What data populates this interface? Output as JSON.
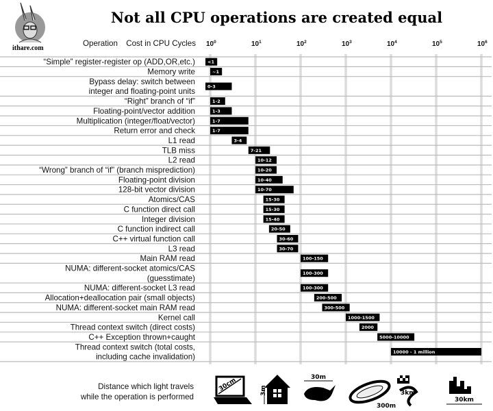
{
  "header": {
    "site": "ithare.com",
    "logo": "rabbit-with-glasses-logo"
  },
  "chart_data": {
    "type": "bar",
    "orientation": "horizontal",
    "scale": "log",
    "title": "Not all CPU operations are created equal",
    "column_header_left": "Operation",
    "xlabel": "Cost in CPU Cycles",
    "xlim": [
      1,
      1000000
    ],
    "xticks": [
      {
        "base": "10",
        "exp": "0"
      },
      {
        "base": "10",
        "exp": "1"
      },
      {
        "base": "10",
        "exp": "2"
      },
      {
        "base": "10",
        "exp": "3"
      },
      {
        "base": "10",
        "exp": "4"
      },
      {
        "base": "10",
        "exp": "5"
      },
      {
        "base": "10",
        "exp": "6"
      }
    ],
    "grid": true,
    "bar_color": "#000000",
    "rows": [
      {
        "label": [
          "“Simple” register-register op (ADD,OR,etc.)"
        ],
        "value": "<1",
        "low": null,
        "high": 1
      },
      {
        "label": [
          "Memory write"
        ],
        "value": "~1",
        "low": 1,
        "high": 1
      },
      {
        "label": [
          "Bypass delay: switch between",
          "integer and floating-point units"
        ],
        "value": "0-3",
        "low": 0,
        "high": 3
      },
      {
        "label": [
          "“Right” branch of “if”"
        ],
        "value": "1-2",
        "low": 1,
        "high": 2
      },
      {
        "label": [
          "Floating-point/vector addition"
        ],
        "value": "1-3",
        "low": 1,
        "high": 3
      },
      {
        "label": [
          "Multiplication (integer/float/vector)"
        ],
        "value": "1-7",
        "low": 1,
        "high": 7
      },
      {
        "label": [
          "Return error and check"
        ],
        "value": "1-7",
        "low": 1,
        "high": 7
      },
      {
        "label": [
          "L1 read"
        ],
        "value": "3-4",
        "low": 3,
        "high": 4
      },
      {
        "label": [
          "TLB miss"
        ],
        "value": "7-21",
        "low": 7,
        "high": 21
      },
      {
        "label": [
          "L2 read"
        ],
        "value": "10-12",
        "low": 10,
        "high": 12
      },
      {
        "label": [
          "“Wrong” branch of “if” (branch misprediction)"
        ],
        "value": "10-20",
        "low": 10,
        "high": 20
      },
      {
        "label": [
          "Floating-point division"
        ],
        "value": "10-40",
        "low": 10,
        "high": 40
      },
      {
        "label": [
          "128-bit vector division"
        ],
        "value": "10-70",
        "low": 10,
        "high": 70
      },
      {
        "label": [
          "Atomics/CAS"
        ],
        "value": "15-30",
        "low": 15,
        "high": 30
      },
      {
        "label": [
          "C function direct call"
        ],
        "value": "15-30",
        "low": 15,
        "high": 30
      },
      {
        "label": [
          "Integer division"
        ],
        "value": "15-40",
        "low": 15,
        "high": 40
      },
      {
        "label": [
          "C function indirect call"
        ],
        "value": "20-50",
        "low": 20,
        "high": 50
      },
      {
        "label": [
          "C++ virtual function call"
        ],
        "value": "30-60",
        "low": 30,
        "high": 60
      },
      {
        "label": [
          "L3 read"
        ],
        "value": "30-70",
        "low": 30,
        "high": 70
      },
      {
        "label": [
          "Main RAM read"
        ],
        "value": "100-150",
        "low": 100,
        "high": 150
      },
      {
        "label": [
          "NUMA: different-socket atomics/CAS",
          "(guesstimate)"
        ],
        "value": "100-300",
        "low": 100,
        "high": 300
      },
      {
        "label": [
          "NUMA: different-socket L3 read"
        ],
        "value": "100-300",
        "low": 100,
        "high": 300
      },
      {
        "label": [
          "Allocation+deallocation pair (small objects)"
        ],
        "value": "200-500",
        "low": 200,
        "high": 500
      },
      {
        "label": [
          "NUMA: different-socket main RAM read"
        ],
        "value": "300-500",
        "low": 300,
        "high": 500
      },
      {
        "label": [
          "Kernel call"
        ],
        "value": "1000-1500",
        "low": 1000,
        "high": 1500
      },
      {
        "label": [
          "Thread context switch (direct costs)"
        ],
        "value": "2000",
        "low": 2000,
        "high": 2000
      },
      {
        "label": [
          "C++ Exception thrown+caught"
        ],
        "value": "5000-10000",
        "low": 5000,
        "high": 10000
      },
      {
        "label": [
          "Thread context switch (total costs,",
          "including cache invalidation)"
        ],
        "value": "10000 - 1 million",
        "low": 10000,
        "high": 1000000
      }
    ]
  },
  "footer": {
    "caption": [
      "Distance which light travels",
      "while the operation is performed"
    ],
    "distances": [
      {
        "icon": "laptop-icon",
        "label": "30cm"
      },
      {
        "icon": "house-icon",
        "label": "3m"
      },
      {
        "icon": "whale-icon",
        "label": "30m"
      },
      {
        "icon": "stadium-icon",
        "label": "300m"
      },
      {
        "icon": "race-track-icon",
        "label": "3km"
      },
      {
        "icon": "city-icon",
        "label": "30km"
      }
    ]
  }
}
